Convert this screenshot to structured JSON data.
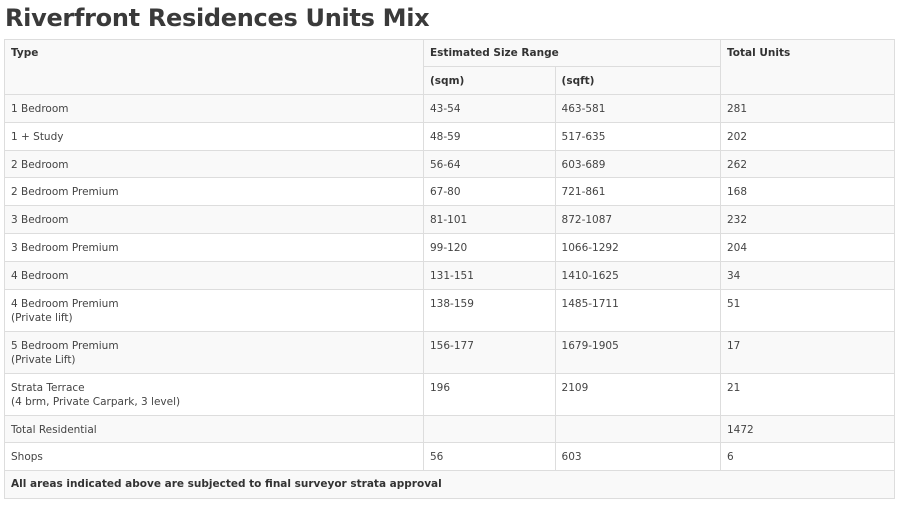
{
  "title": "Riverfront Residences Units Mix",
  "table": {
    "headers": {
      "type": "Type",
      "size_range": "Estimated Size Range",
      "sqm": "(sqm)",
      "sqft": "(sqft)",
      "total_units": "Total Units"
    },
    "rows": [
      {
        "type": "1 Bedroom",
        "type_line2": "",
        "sqm": "43-54",
        "sqft": "463-581",
        "units": "281"
      },
      {
        "type": "1 + Study",
        "type_line2": "",
        "sqm": "48-59",
        "sqft": "517-635",
        "units": "202"
      },
      {
        "type": "2 Bedroom",
        "type_line2": "",
        "sqm": "56-64",
        "sqft": "603-689",
        "units": "262"
      },
      {
        "type": "2 Bedroom Premium",
        "type_line2": "",
        "sqm": "67-80",
        "sqft": "721-861",
        "units": "168"
      },
      {
        "type": "3 Bedroom",
        "type_line2": "",
        "sqm": "81-101",
        "sqft": "872-1087",
        "units": "232"
      },
      {
        "type": "3 Bedroom Premium",
        "type_line2": "",
        "sqm": "99-120",
        "sqft": "1066-1292",
        "units": "204"
      },
      {
        "type": "4 Bedroom",
        "type_line2": "",
        "sqm": "131-151",
        "sqft": "1410-1625",
        "units": "34"
      },
      {
        "type": "4 Bedroom Premium",
        "type_line2": "(Private lift)",
        "sqm": "138-159",
        "sqft": "1485-1711",
        "units": "51"
      },
      {
        "type": "5 Bedroom Premium",
        "type_line2": "(Private Lift)",
        "sqm": "156-177",
        "sqft": "1679-1905",
        "units": "17"
      },
      {
        "type": "Strata Terrace",
        "type_line2": "(4 brm, Private Carpark, 3 level)",
        "sqm": "196",
        "sqft": "2109",
        "units": "21"
      },
      {
        "type": "Total Residential",
        "type_line2": "",
        "sqm": "",
        "sqft": "",
        "units": "1472"
      },
      {
        "type": "Shops",
        "type_line2": "",
        "sqm": "56",
        "sqft": "603",
        "units": "6"
      }
    ],
    "footer_note": "All areas indicated above are subjected to final surveyor strata approval"
  }
}
